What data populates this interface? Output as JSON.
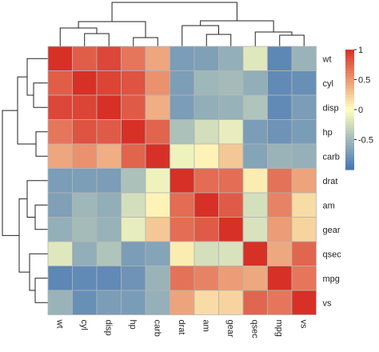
{
  "chart_data": {
    "type": "heatmap",
    "title": "",
    "rows": [
      "wt",
      "cyl",
      "disp",
      "hp",
      "carb",
      "drat",
      "am",
      "gear",
      "qsec",
      "mpg",
      "vs"
    ],
    "columns": [
      "wt",
      "cyl",
      "disp",
      "hp",
      "carb",
      "drat",
      "am",
      "gear",
      "qsec",
      "mpg",
      "vs"
    ],
    "values": [
      [
        1.0,
        0.78,
        0.89,
        0.66,
        0.43,
        -0.71,
        -0.69,
        -0.58,
        -0.17,
        -0.87,
        -0.55
      ],
      [
        0.78,
        1.0,
        0.9,
        0.83,
        0.53,
        -0.7,
        -0.52,
        -0.49,
        -0.59,
        -0.85,
        -0.81
      ],
      [
        0.89,
        0.9,
        1.0,
        0.79,
        0.39,
        -0.71,
        -0.59,
        -0.56,
        -0.43,
        -0.85,
        -0.71
      ],
      [
        0.66,
        0.83,
        0.79,
        1.0,
        0.75,
        -0.45,
        -0.24,
        -0.13,
        -0.71,
        -0.78,
        -0.72
      ],
      [
        0.43,
        0.53,
        0.39,
        0.75,
        1.0,
        -0.09,
        0.06,
        0.27,
        -0.66,
        -0.55,
        -0.57
      ],
      [
        -0.71,
        -0.7,
        -0.71,
        -0.45,
        -0.09,
        1.0,
        0.71,
        0.7,
        0.09,
        0.68,
        0.44
      ],
      [
        -0.69,
        -0.52,
        -0.59,
        -0.24,
        0.06,
        0.71,
        1.0,
        0.79,
        -0.23,
        0.6,
        0.17
      ],
      [
        -0.58,
        -0.49,
        -0.56,
        -0.13,
        0.27,
        0.7,
        0.79,
        1.0,
        -0.21,
        0.48,
        0.21
      ],
      [
        -0.17,
        -0.59,
        -0.43,
        -0.71,
        -0.66,
        0.09,
        -0.23,
        -0.21,
        1.0,
        0.42,
        0.74
      ],
      [
        -0.87,
        -0.85,
        -0.85,
        -0.78,
        -0.55,
        0.68,
        0.6,
        0.48,
        0.42,
        1.0,
        0.66
      ],
      [
        -0.55,
        -0.81,
        -0.71,
        -0.72,
        -0.57,
        0.44,
        0.17,
        0.21,
        0.74,
        0.66,
        1.0
      ]
    ],
    "color_scale": {
      "min": -1,
      "max": 1,
      "ticks": [
        1,
        0.5,
        0,
        -0.5
      ],
      "low_color": "#4575B4",
      "mid_color": "#FFFFBF",
      "high_color": "#D73027"
    },
    "legend_position": "right",
    "grid": true,
    "column_dendrogram": "top",
    "row_dendrogram": "left"
  }
}
